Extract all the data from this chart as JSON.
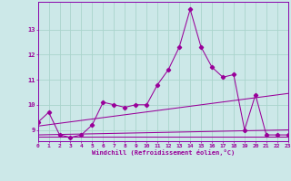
{
  "xlabel": "Windchill (Refroidissement éolien,°C)",
  "background_color": "#cce8e8",
  "grid_color": "#aad4cc",
  "line_color": "#990099",
  "spine_color": "#8800aa",
  "x_ticks": [
    0,
    1,
    2,
    3,
    4,
    5,
    6,
    7,
    8,
    9,
    10,
    11,
    12,
    13,
    14,
    15,
    16,
    17,
    18,
    19,
    20,
    21,
    22,
    23
  ],
  "y_ticks": [
    9,
    10,
    11,
    12,
    13
  ],
  "ylim": [
    8.55,
    14.1
  ],
  "xlim": [
    0,
    23
  ],
  "series": {
    "main_line": {
      "x": [
        0,
        1,
        2,
        3,
        4,
        5,
        6,
        7,
        8,
        9,
        10,
        11,
        12,
        13,
        14,
        15,
        16,
        17,
        18,
        19,
        20,
        21,
        22,
        23
      ],
      "y": [
        9.3,
        9.7,
        8.8,
        8.7,
        8.8,
        9.2,
        10.1,
        10.0,
        9.9,
        10.0,
        10.0,
        10.8,
        11.4,
        12.3,
        13.8,
        12.3,
        11.5,
        11.1,
        11.2,
        9.0,
        10.4,
        8.8,
        8.8,
        8.8
      ]
    },
    "line_upper": {
      "x": [
        0,
        23
      ],
      "y": [
        9.15,
        10.45
      ]
    },
    "line_mid": {
      "x": [
        0,
        23
      ],
      "y": [
        8.8,
        9.0
      ]
    },
    "line_flat": {
      "x": [
        0,
        23
      ],
      "y": [
        8.72,
        8.72
      ]
    }
  }
}
